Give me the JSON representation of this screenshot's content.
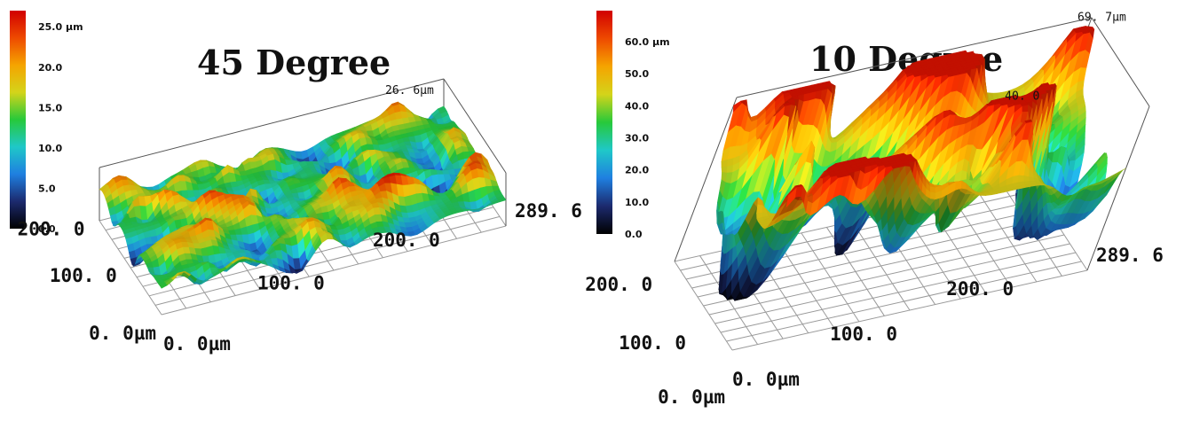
{
  "chart_data": [
    {
      "type": "surface3d",
      "title": "45 Degree",
      "colorbar": {
        "ticks": [
          {
            "value": 25.0,
            "label": "25.0 µm"
          },
          {
            "value": 20.0,
            "label": "20.0"
          },
          {
            "value": 15.0,
            "label": "15.0"
          },
          {
            "value": 10.0,
            "label": "10.0"
          },
          {
            "value": 5.0,
            "label": "5.0"
          },
          {
            "value": 0.0,
            "label": "0.0"
          }
        ],
        "range": [
          0,
          27
        ],
        "colors": [
          "#000000",
          "#1c2a6e",
          "#1f7fe0",
          "#1fc8c8",
          "#27c93a",
          "#d4d41a",
          "#f5a400",
          "#ee4a00",
          "#d10000"
        ]
      },
      "x_axis": {
        "ticks": [
          {
            "value": 0,
            "label": "0. 0µm"
          },
          {
            "value": 100,
            "label": "100. 0"
          },
          {
            "value": 200,
            "label": "200. 0"
          },
          {
            "value": 289.6,
            "label": "289. 6"
          }
        ],
        "range": [
          0,
          289.6
        ]
      },
      "y_axis": {
        "ticks": [
          {
            "value": 0,
            "label": "0. 0µm"
          },
          {
            "value": 100,
            "label": "100. 0"
          },
          {
            "value": 200,
            "label": "200. 0"
          }
        ],
        "range": [
          0,
          217
        ]
      },
      "z_axis": {
        "max_label": "26. 6µm",
        "max": 26.6
      },
      "surface": {
        "mean_height": 13,
        "amplitude": 5,
        "description_peaks": "dense uniform small peaks"
      },
      "grid": true
    },
    {
      "type": "surface3d",
      "title": "10 Degree",
      "colorbar": {
        "ticks": [
          {
            "value": 60.0,
            "label": "60.0 µm"
          },
          {
            "value": 50.0,
            "label": "50.0"
          },
          {
            "value": 40.0,
            "label": "40.0"
          },
          {
            "value": 30.0,
            "label": "30.0"
          },
          {
            "value": 20.0,
            "label": "20.0"
          },
          {
            "value": 10.0,
            "label": "10.0"
          },
          {
            "value": 0.0,
            "label": "0.0"
          }
        ],
        "range": [
          0,
          69.7
        ],
        "colors": [
          "#000000",
          "#1c2a6e",
          "#1f7fe0",
          "#1fc8c8",
          "#27c93a",
          "#d4d41a",
          "#f5a400",
          "#ee4a00",
          "#d10000"
        ]
      },
      "x_axis": {
        "ticks": [
          {
            "value": 0,
            "label": "0. 0µm"
          },
          {
            "value": 100,
            "label": "100. 0"
          },
          {
            "value": 200,
            "label": "200. 0"
          },
          {
            "value": 289.6,
            "label": "289. 6"
          }
        ],
        "range": [
          0,
          289.6
        ]
      },
      "y_axis": {
        "ticks": [
          {
            "value": 0,
            "label": "0. 0µm"
          },
          {
            "value": 100,
            "label": "100. 0"
          },
          {
            "value": 200,
            "label": "200. 0"
          }
        ],
        "range": [
          0,
          217
        ]
      },
      "z_axis": {
        "max_label": "69. 7µm",
        "max": 69.7,
        "mid_label": "40. 0",
        "mid": 40.0
      },
      "surface": {
        "mean_height": 45,
        "amplitude": 18
      },
      "grid": true
    }
  ]
}
